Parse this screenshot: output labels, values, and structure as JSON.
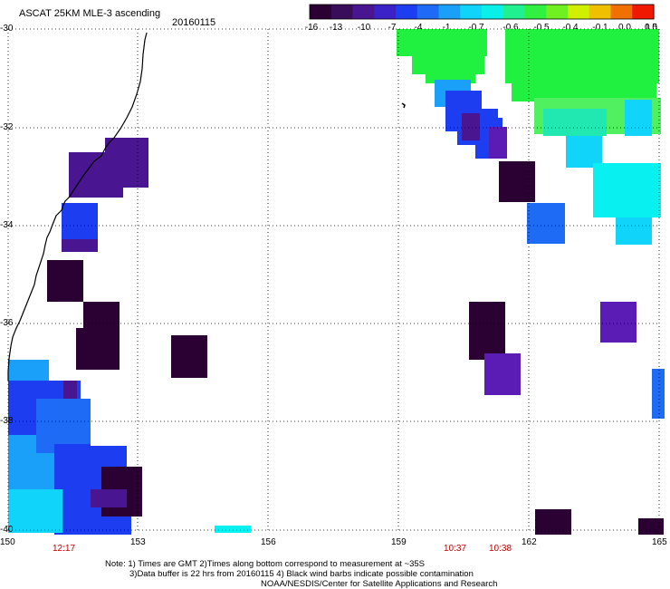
{
  "header": {
    "title": "ASCAT 25KM MLE-3 ascending",
    "date": "20160115"
  },
  "colorbar": {
    "ticks": [
      "-16",
      "-13",
      "-10",
      "-7",
      "-4",
      "-1",
      "-0.7",
      "-0.6",
      "-0.5",
      "-0.4",
      "-0.1",
      "0.0",
      "0.5",
      "1.0"
    ],
    "colors": [
      "#2b0033",
      "#3a0d5a",
      "#4a1590",
      "#3a22c8",
      "#1d3ef0",
      "#1e6cf5",
      "#1aa0f8",
      "#10d4fa",
      "#08f0e8",
      "#20f090",
      "#30f040",
      "#70f020",
      "#d0f000",
      "#f0c000",
      "#f07000",
      "#f01800"
    ]
  },
  "map": {
    "lat_labels": [
      "-30",
      "-32",
      "-34",
      "-36",
      "-38",
      "-40"
    ],
    "lon_labels": [
      "150",
      "153",
      "156",
      "159",
      "162",
      "165"
    ],
    "times": [
      "12:17",
      "10:37",
      "10:38"
    ],
    "cell_colors": {
      "dark": "#2b0033",
      "purple": "#4a1590",
      "violet": "#5a1cb4",
      "blue": "#1d3ef0",
      "mblue": "#1e6cf5",
      "lblue": "#1aa0f8",
      "cyan": "#10d4fa",
      "lcyan": "#08f0f0",
      "green": "#20f040",
      "lgreen": "#50f060",
      "teal": "#20e8b0"
    }
  },
  "notes": {
    "line1": "Note: 1) Times are GMT 2)Times along bottom correspond to measurement at ~35S",
    "line2": "3)Data buffer is 22 hrs from 20160115 4) Black wind barbs indicate possible contamination",
    "line3": "NOAA/NESDIS/Center for Satellite Applications and Research"
  }
}
